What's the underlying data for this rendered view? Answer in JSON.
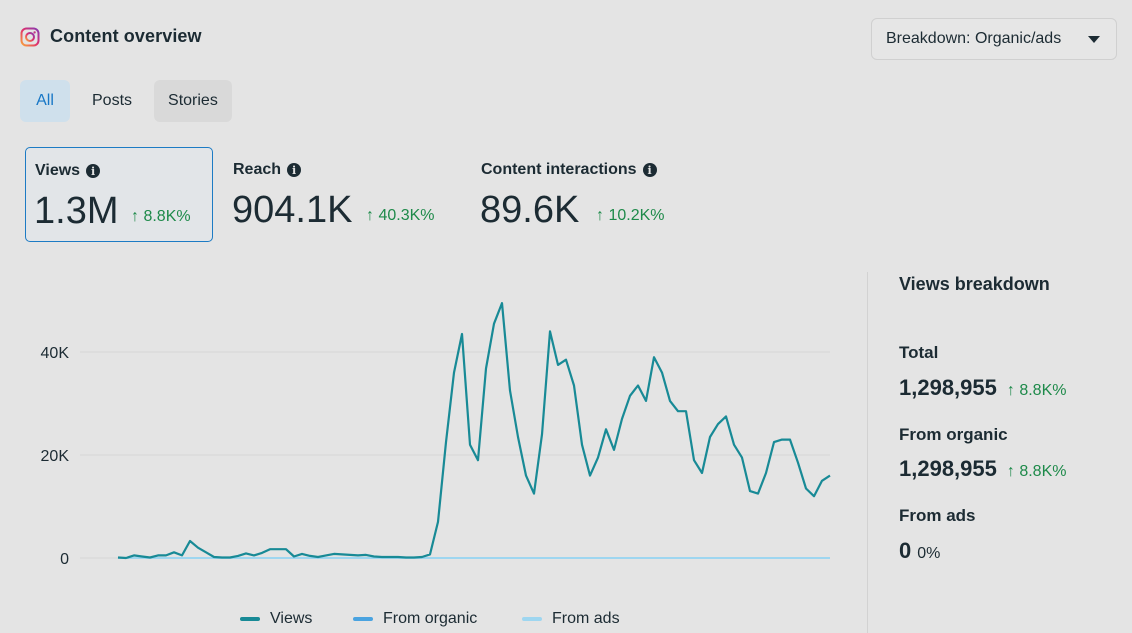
{
  "header": {
    "title": "Content overview",
    "icon": "instagram-icon"
  },
  "breakdown_dropdown": {
    "label": "Breakdown: Organic/ads"
  },
  "tabs": [
    {
      "label": "All",
      "selected": true
    },
    {
      "label": "Posts",
      "selected": false
    },
    {
      "label": "Stories",
      "selected": false
    }
  ],
  "metrics": [
    {
      "label": "Views",
      "value": "1.3M",
      "change": "↑ 8.8K%",
      "selected": true
    },
    {
      "label": "Reach",
      "value": "904.1K",
      "change": "↑ 40.3K%",
      "selected": false
    },
    {
      "label": "Content interactions",
      "value": "89.6K",
      "change": "↑ 10.2K%",
      "selected": false
    }
  ],
  "views_breakdown": {
    "title": "Views breakdown",
    "total": {
      "label": "Total",
      "value": "1,298,955",
      "change": "↑ 8.8K%"
    },
    "organic": {
      "label": "From organic",
      "value": "1,298,955",
      "change": "↑ 8.8K%"
    },
    "ads": {
      "label": "From ads",
      "value": "0",
      "percent": "0%"
    }
  },
  "colors": {
    "views": "#188a96",
    "organic": "#4aa3e0",
    "ads": "#9ed6f0",
    "positive": "#1e8a4a",
    "accent": "#1877c6"
  },
  "chart_data": {
    "type": "line",
    "ylim": [
      0,
      50000
    ],
    "yticks": [
      0,
      20000,
      40000
    ],
    "ytick_labels": [
      "0",
      "20K",
      "40K"
    ],
    "series": [
      {
        "name": "Views",
        "values": [
          100,
          0,
          500,
          300,
          100,
          500,
          500,
          1100,
          500,
          3300,
          2000,
          1100,
          200,
          100,
          100,
          400,
          900,
          500,
          1000,
          1700,
          1700,
          1700,
          300,
          800,
          400,
          200,
          500,
          800,
          700,
          600,
          500,
          600,
          300,
          200,
          200,
          200,
          100,
          100,
          200,
          700,
          7000,
          22500,
          36000,
          43500,
          22000,
          19000,
          36800,
          45500,
          49500,
          32500,
          23500,
          16000,
          12500,
          24000,
          44000,
          37500,
          38500,
          33500,
          22000,
          16000,
          19500,
          25000,
          21000,
          27000,
          31500,
          33500,
          30500,
          39000,
          36000,
          30500,
          28500,
          28500,
          19000,
          16500,
          23500,
          26000,
          27500,
          22000,
          19500,
          13000,
          12500,
          16500,
          22500,
          23000,
          23000,
          18500,
          13500,
          12000,
          15000,
          16000
        ]
      },
      {
        "name": "From organic",
        "values": []
      },
      {
        "name": "From ads",
        "values": [
          0,
          0
        ]
      }
    ]
  }
}
